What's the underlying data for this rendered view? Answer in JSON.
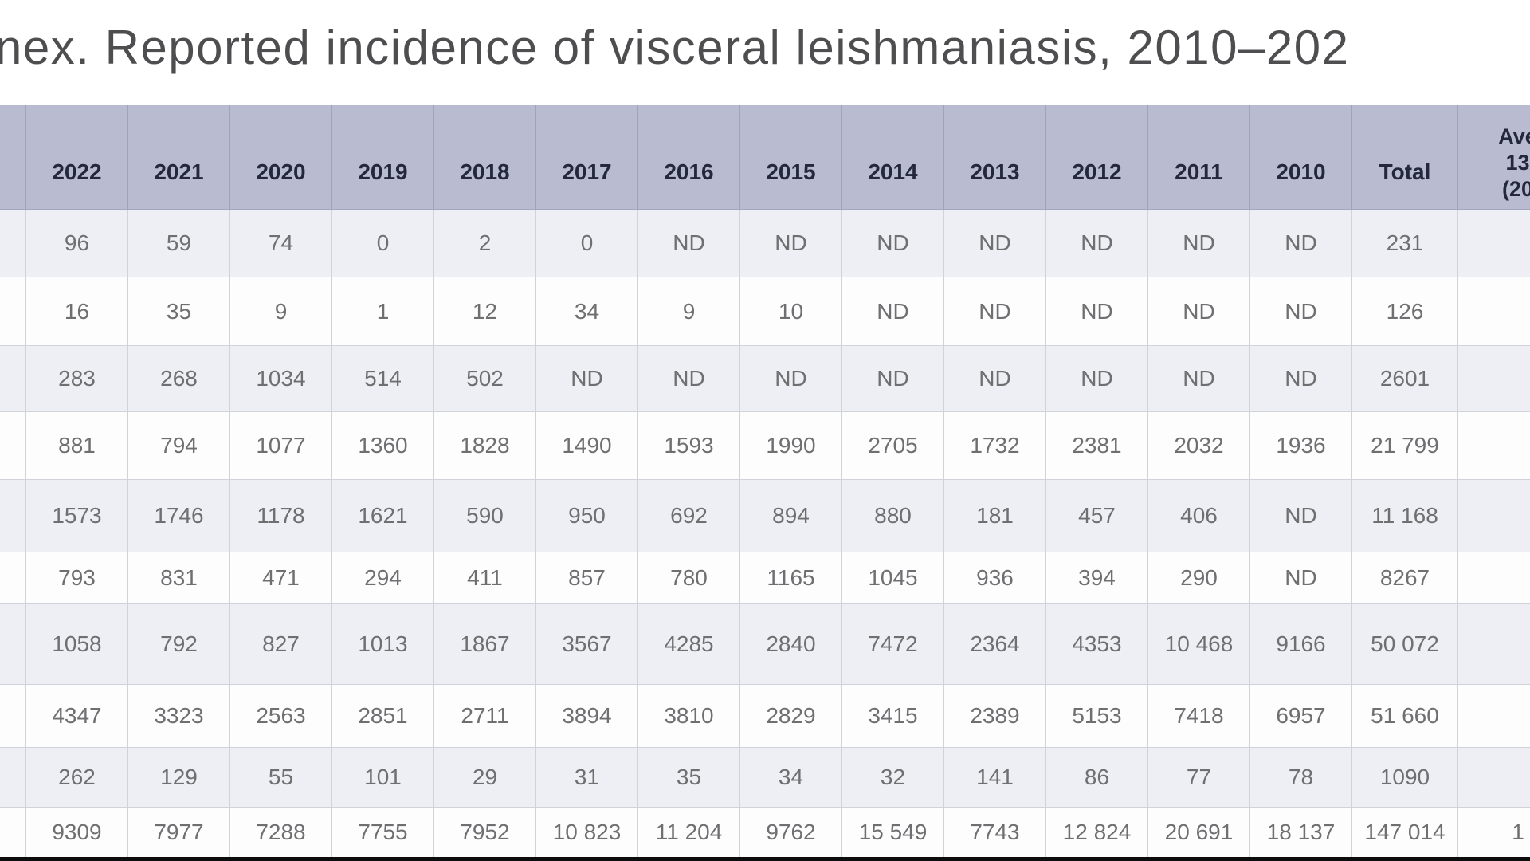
{
  "page": {
    "title": "nex. Reported incidence of visceral leishmaniasis, 2010–202"
  },
  "colors": {
    "header_bg": "#b9bbd0",
    "header_text": "#23283d",
    "row_alt": "#edeff4",
    "row_white": "#fdfdfe",
    "grid_line": "#d2d3da",
    "cell_text": "#6f6f71",
    "title_text": "#4e4e50",
    "bottom_bar": "#0d0d0d"
  },
  "table": {
    "columns": [
      "2022",
      "2021",
      "2020",
      "2019",
      "2018",
      "2017",
      "2016",
      "2015",
      "2014",
      "2013",
      "2012",
      "2011",
      "2010",
      "Total"
    ],
    "avg_header_lines": [
      "Ave",
      "13",
      "(20"
    ],
    "no_data_label": "ND",
    "rows": [
      {
        "values": [
          "96",
          "59",
          "74",
          "0",
          "2",
          "0",
          "ND",
          "ND",
          "ND",
          "ND",
          "ND",
          "ND",
          "ND",
          "231"
        ],
        "average": ""
      },
      {
        "values": [
          "16",
          "35",
          "9",
          "1",
          "12",
          "34",
          "9",
          "10",
          "ND",
          "ND",
          "ND",
          "ND",
          "ND",
          "126"
        ],
        "average": ""
      },
      {
        "values": [
          "283",
          "268",
          "1034",
          "514",
          "502",
          "ND",
          "ND",
          "ND",
          "ND",
          "ND",
          "ND",
          "ND",
          "ND",
          "2601"
        ],
        "average": ""
      },
      {
        "values": [
          "881",
          "794",
          "1077",
          "1360",
          "1828",
          "1490",
          "1593",
          "1990",
          "2705",
          "1732",
          "2381",
          "2032",
          "1936",
          "21 799"
        ],
        "average": ""
      },
      {
        "values": [
          "1573",
          "1746",
          "1178",
          "1621",
          "590",
          "950",
          "692",
          "894",
          "880",
          "181",
          "457",
          "406",
          "ND",
          "11 168"
        ],
        "average": ""
      },
      {
        "values": [
          "793",
          "831",
          "471",
          "294",
          "411",
          "857",
          "780",
          "1165",
          "1045",
          "936",
          "394",
          "290",
          "ND",
          "8267"
        ],
        "average": ""
      },
      {
        "values": [
          "1058",
          "792",
          "827",
          "1013",
          "1867",
          "3567",
          "4285",
          "2840",
          "7472",
          "2364",
          "4353",
          "10 468",
          "9166",
          "50 072"
        ],
        "average": ""
      },
      {
        "values": [
          "4347",
          "3323",
          "2563",
          "2851",
          "2711",
          "3894",
          "3810",
          "2829",
          "3415",
          "2389",
          "5153",
          "7418",
          "6957",
          "51 660"
        ],
        "average": ""
      },
      {
        "values": [
          "262",
          "129",
          "55",
          "101",
          "29",
          "31",
          "35",
          "34",
          "32",
          "141",
          "86",
          "77",
          "78",
          "1090"
        ],
        "average": ""
      },
      {
        "values": [
          "9309",
          "7977",
          "7288",
          "7755",
          "7952",
          "10 823",
          "11 204",
          "9762",
          "15 549",
          "7743",
          "12 824",
          "20 691",
          "18 137",
          "147 014"
        ],
        "average": "1"
      }
    ]
  }
}
